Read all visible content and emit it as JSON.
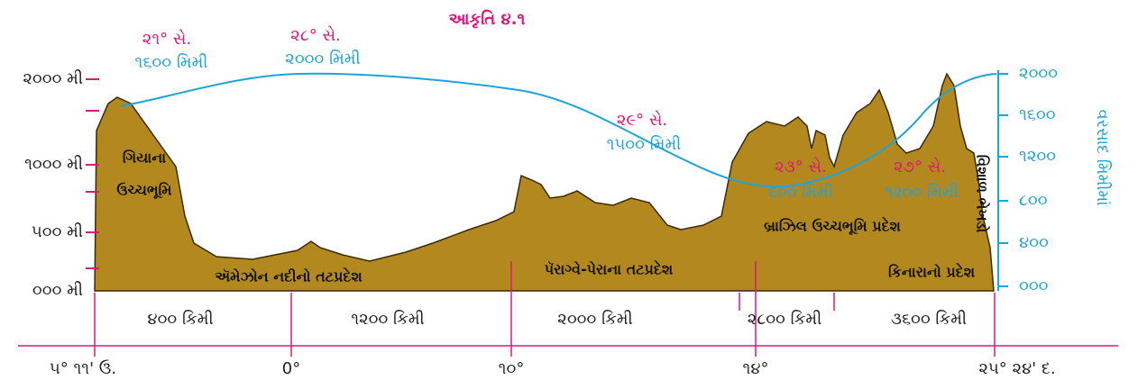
{
  "title": "આકૃતિ ૪.૧",
  "elevation_axis": {
    "labels": [
      "૨૦૦૦ મી",
      "૧૦૦૦ મી",
      "૫૦૦ મી",
      "૦૦૦ મી"
    ]
  },
  "rainfall_axis": {
    "title": "વરસાદ મિમીમાં",
    "labels": [
      "૨૦૦૦",
      "૧૬૦૦",
      "૧૨૦૦",
      "૮૦૦",
      "૪૦૦",
      "૦૦૦"
    ]
  },
  "climate_notes": [
    {
      "temperature": "૨૧° સે.",
      "rainfall": "૧૬૦૦ મિમી"
    },
    {
      "temperature": "૨૮° સે.",
      "rainfall": "૨૦૦૦ મિમી"
    },
    {
      "temperature": "૨૯° સે.",
      "rainfall": "૧૫૦૦ મિમી"
    },
    {
      "temperature": "૨૩° સે.",
      "rainfall": "૬૦૦ મિમી"
    },
    {
      "temperature": "૨૭° સે.",
      "rainfall": "૧૨૦૦ મિમી"
    }
  ],
  "regions": [
    "ગિયાના",
    "ઉચ્ચભૂમિ",
    "ઍમેઝોન નદીનો તટપ્રદેશ",
    "પૅરાગ્વે-પેરાના તટપ્રદેશ",
    "બ્રાઝિલ ઉચ્ચભૂમિ પ્રદેશ",
    "કિનારાનો પ્રદેશ",
    "વિશાળ ભેખડો"
  ],
  "distances": [
    "૪૦૦ કિમી",
    "૧૨૦૦ કિમી",
    "૨૦૦૦ કિમી",
    "૨૮૦૦ કિમી",
    "૩૬૦૦ કિમી"
  ],
  "longitudes": [
    "૫° ૧૧' ઉ.",
    "0°",
    "૧૦°",
    "૧૪°",
    "૨૫° ૨૪' દ."
  ]
}
